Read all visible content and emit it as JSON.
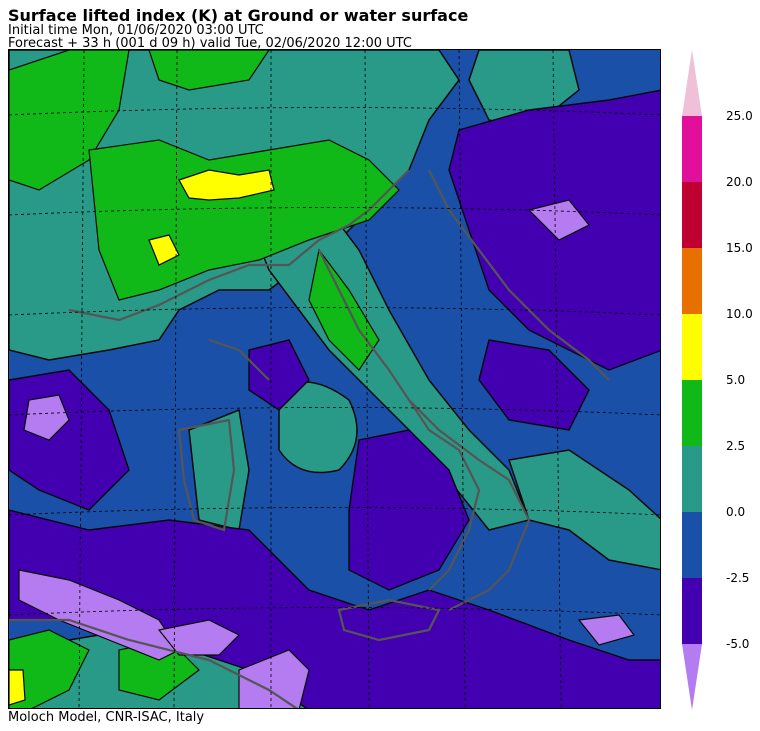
{
  "header": {
    "title": "Surface lifted index (K) at Ground or water surface",
    "initial_time": "Initial time  Mon, 01/06/2020  03:00 UTC",
    "forecast": "Forecast  +  33 h  (001 d 09 h)  valid Tue, 02/06/2020 12:00 UTC"
  },
  "footer": {
    "credit": "Moloch Model, CNR-ISAC, Italy"
  },
  "legend": {
    "colors": [
      "#b57bf0",
      "#4200b0",
      "#1b50a8",
      "#2a9a88",
      "#10b818",
      "#ffff00",
      "#e87000",
      "#c00030",
      "#e0109a",
      "#f0c0d8"
    ],
    "tick_labels": [
      "-5.0",
      "-2.5",
      "0.0",
      "2.5",
      "5.0",
      "10.0",
      "15.0",
      "20.0",
      "25.0"
    ]
  },
  "map": {
    "region": "Italy and central Mediterranean",
    "field": "Surface lifted index (K)",
    "graticule": "dashed"
  }
}
